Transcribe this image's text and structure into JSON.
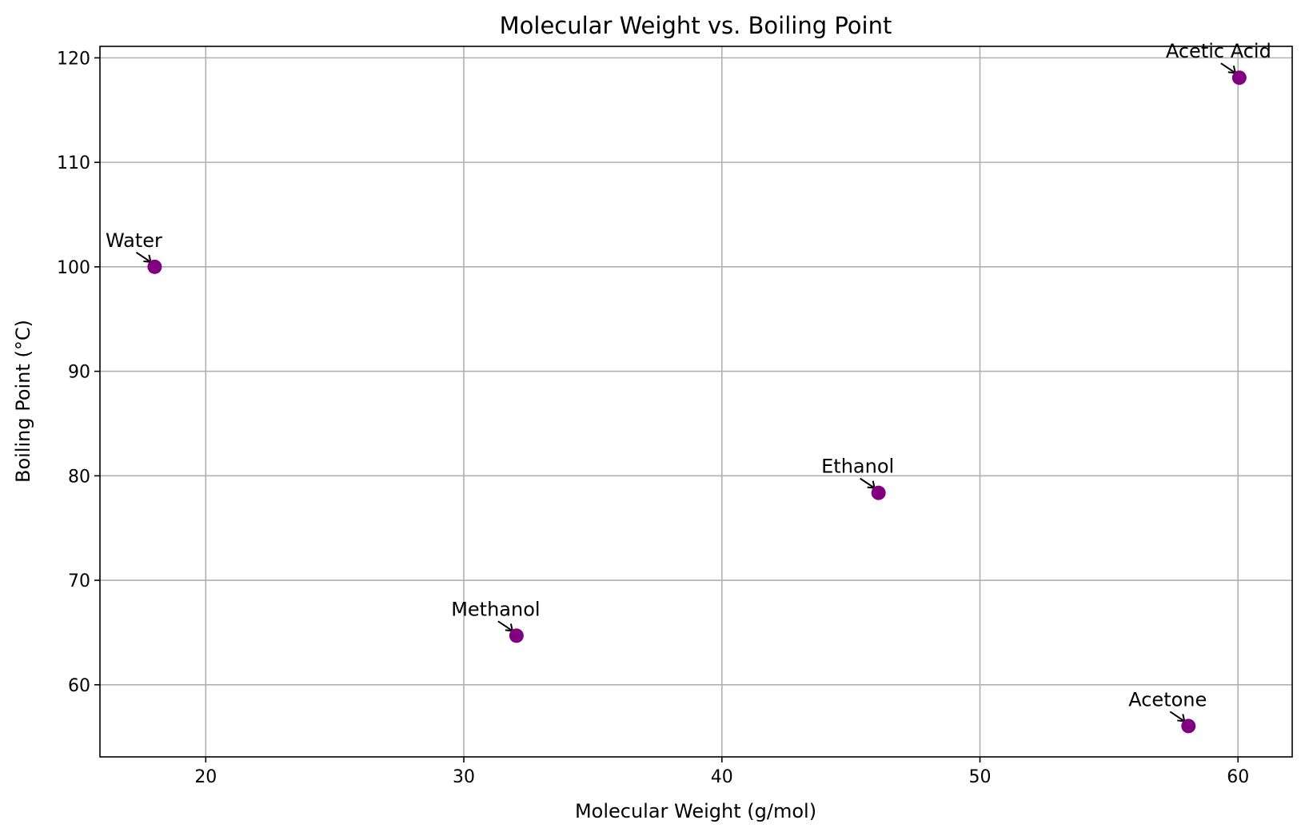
{
  "chart_data": {
    "type": "scatter",
    "title": "Molecular Weight vs. Boiling Point",
    "xlabel": "Molecular Weight (g/mol)",
    "ylabel": "Boiling Point (°C)",
    "xlim": [
      15.9,
      62.1
    ],
    "ylim": [
      53.1,
      121.1
    ],
    "xticks": [
      20,
      30,
      40,
      50,
      60
    ],
    "yticks": [
      60,
      70,
      80,
      90,
      100,
      110,
      120
    ],
    "grid": true,
    "marker_color": "#800080",
    "points": [
      {
        "label": "Water",
        "x": 18.02,
        "y": 100
      },
      {
        "label": "Methanol",
        "x": 32.04,
        "y": 64.7
      },
      {
        "label": "Ethanol",
        "x": 46.07,
        "y": 78.37
      },
      {
        "label": "Acetone",
        "x": 58.08,
        "y": 56.05
      },
      {
        "label": "Acetic Acid",
        "x": 60.05,
        "y": 118.1
      }
    ]
  }
}
